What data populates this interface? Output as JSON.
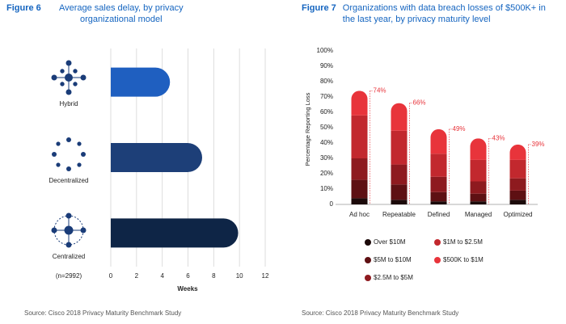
{
  "chart_data": [
    {
      "type": "bar",
      "orientation": "horizontal",
      "figure": "Figure 6",
      "title": "Average sales delay, by privacy organizational model",
      "categories": [
        "Hybrid",
        "Decentralized",
        "Centralized"
      ],
      "values": [
        4.6,
        7.1,
        9.9
      ],
      "colors": [
        "#1f5fc0",
        "#1d3f78",
        "#0e2546"
      ],
      "xlim": [
        0,
        12
      ],
      "xticks": [
        0,
        2,
        4,
        6,
        8,
        10,
        12
      ],
      "xlabel": "Weeks",
      "grid": true,
      "note": "(n=2992)",
      "source": "Source: Cisco 2018 Privacy Maturity Benchmark Study"
    },
    {
      "type": "bar",
      "stacked": true,
      "figure": "Figure 7",
      "title": "Organizations with data breach losses of $500K+ in the last year, by privacy maturity level",
      "categories": [
        "Ad hoc",
        "Repeatable",
        "Defined",
        "Managed",
        "Optimized"
      ],
      "series": [
        {
          "name": "Over $10M",
          "color": "#1c0a0a",
          "values": [
            4,
            3,
            2,
            2,
            3
          ]
        },
        {
          "name": "$5M to $10M",
          "color": "#5e1013",
          "values": [
            12,
            10,
            6,
            5,
            6
          ]
        },
        {
          "name": "$2.5M to $5M",
          "color": "#8e1a1f",
          "values": [
            14,
            13,
            10,
            8,
            8
          ]
        },
        {
          "name": "$1M to $2.5M",
          "color": "#c2282e",
          "values": [
            28,
            22,
            15,
            14,
            12
          ]
        },
        {
          "name": "$500K to $1M",
          "color": "#e8343b",
          "values": [
            16,
            18,
            16,
            14,
            10
          ]
        }
      ],
      "totals": [
        74,
        66,
        49,
        43,
        39
      ],
      "total_labels": [
        "74%",
        "66%",
        "49%",
        "43%",
        "39%"
      ],
      "ylim": [
        0,
        100
      ],
      "yticks": [
        0,
        {
          "value": 10,
          "label": "10%"
        },
        {
          "value": 20,
          "label": "20%"
        },
        {
          "value": 30,
          "label": "30%"
        },
        {
          "value": 40,
          "label": "40%"
        },
        {
          "value": 50,
          "label": "50%"
        },
        {
          "value": 60,
          "label": "60%"
        },
        {
          "value": 70,
          "label": "70%"
        },
        {
          "value": 80,
          "label": "80%"
        },
        {
          "value": 90,
          "label": "90%"
        },
        {
          "value": 100,
          "label": "100%"
        }
      ],
      "ylabel": "Percentage Reporting Loss",
      "grid": false,
      "source": "Source: Cisco 2018 Privacy Maturity Benchmark Study"
    }
  ]
}
